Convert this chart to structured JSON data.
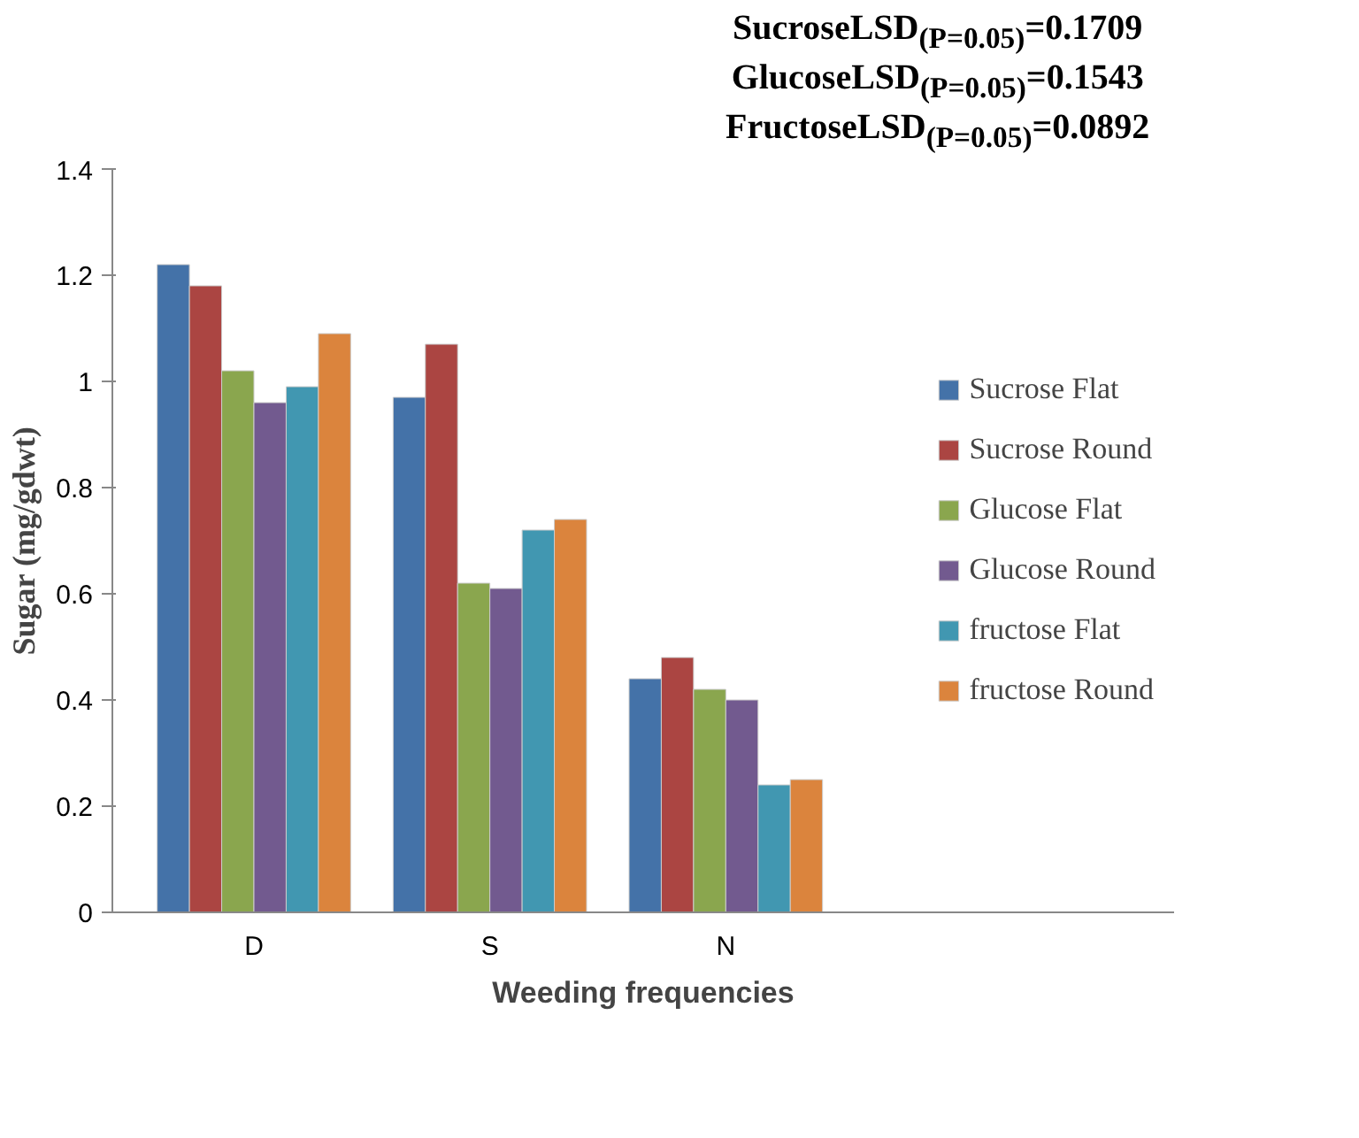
{
  "chart_data": {
    "type": "bar",
    "xlabel": "Weeding frequencies",
    "ylabel": "Sugar (mg/gdwt)",
    "categories": [
      "D",
      "S",
      "N"
    ],
    "series": [
      {
        "name": "Sucrose Flat",
        "color": "#4472a8",
        "values": [
          1.22,
          0.97,
          0.44
        ]
      },
      {
        "name": "Sucrose Round",
        "color": "#ab4542",
        "values": [
          1.18,
          1.07,
          0.48
        ]
      },
      {
        "name": "Glucose Flat",
        "color": "#8aa64e",
        "values": [
          1.02,
          0.62,
          0.42
        ]
      },
      {
        "name": "Glucose Round",
        "color": "#725a8f",
        "values": [
          0.96,
          0.61,
          0.4
        ]
      },
      {
        "name": "fructose Flat",
        "color": "#4197b1",
        "values": [
          0.99,
          0.72,
          0.24
        ]
      },
      {
        "name": "fructose Round",
        "color": "#db843d",
        "values": [
          1.09,
          0.74,
          0.25
        ]
      }
    ],
    "ylim": [
      0,
      1.4
    ],
    "yticks": [
      0,
      0.2,
      0.4,
      0.6,
      0.8,
      1,
      1.2,
      1.4
    ],
    "grid": false,
    "legend": "right",
    "annotations": [
      "SucroseLSD$_{(P=0.05)}$=0.1709",
      "GlucoseLSD$_{(P=0.05)}$=0.1543",
      "FructoseLSD$_{(P=0.05)}$=0.0892"
    ]
  }
}
